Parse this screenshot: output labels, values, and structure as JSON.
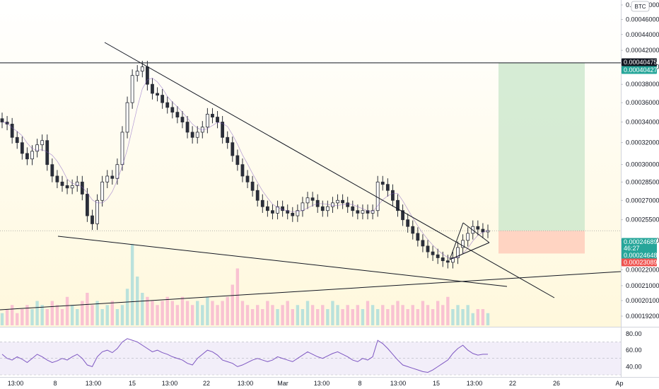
{
  "chart_data": {
    "type": "candlestick",
    "currency": "BTC",
    "colors": {
      "up": "#26a69a",
      "down": "#26a69a",
      "candle": "#2a2e39",
      "volume_up": "#b2dfdb",
      "volume_down": "#f8bbd0",
      "rsi_line": "#7e57c2",
      "rsi_band": "#ede7f6",
      "trendline": "#131722",
      "target_zone": "#c8e6c9",
      "stop_zone": "#ffccbc",
      "last_price_line": "#9e9e9e",
      "tag_dark": "#131722",
      "tag_green": "#26a69a",
      "tag_red": "#ef5350"
    },
    "background_gradient": [
      "#ffffff",
      "#fff8dc"
    ],
    "price_axis": {
      "ticks": [
        "0.00048000",
        "0.00046000",
        "0.00044000",
        "0.00042000",
        "0.00040000",
        "0.00038000",
        "0.00036000",
        "0.00034000",
        "0.00032000",
        "0.00030000",
        "0.00028500",
        "0.00027000",
        "0.00025500",
        "0.00024000",
        "0.00022000",
        "0.00021000",
        "0.00020100",
        "0.00019200"
      ],
      "scale": "log"
    },
    "price_tags": [
      {
        "value": "0.00040475",
        "style": "dark"
      },
      {
        "value": "0.00040427",
        "style": "green"
      },
      {
        "value": "0.00024689",
        "style": "green"
      },
      {
        "value": "46:27",
        "style": "green"
      },
      {
        "value": "0.00024648",
        "style": "green"
      },
      {
        "value": "0.00023089",
        "style": "red"
      }
    ],
    "time_axis": {
      "labels": [
        "13:00",
        "8",
        "13:00",
        "15",
        "13:00",
        "22",
        "13:00",
        "Mar",
        "13:00",
        "8",
        "13:00",
        "15",
        "13:00",
        "22",
        "26",
        "Ap"
      ]
    },
    "rsi": {
      "ticks": [
        "80.00",
        "60.00",
        "40.00"
      ],
      "upper_band": 70,
      "lower_band": 30,
      "range": [
        30,
        85
      ]
    },
    "series": [
      {
        "kind": "price",
        "close": [
          0.00034,
          0.000338,
          0.000325,
          0.00032,
          0.00031,
          0.000305,
          0.000312,
          0.000318,
          0.000322,
          0.0003,
          0.00029,
          0.000285,
          0.000282,
          0.00028,
          0.000282,
          0.000285,
          0.000275,
          0.000258,
          0.000252,
          0.00027,
          0.000285,
          0.00029,
          0.000288,
          0.0003,
          0.00033,
          0.00036,
          0.00039,
          0.000395,
          0.0004,
          0.00038,
          0.00037,
          0.000368,
          0.00036,
          0.000355,
          0.00035,
          0.000345,
          0.00034,
          0.00033,
          0.000325,
          0.00033,
          0.000335,
          0.000348,
          0.000345,
          0.00034,
          0.000325,
          0.00032,
          0.000308,
          0.0003,
          0.00029,
          0.000285,
          0.000278,
          0.00027,
          0.000265,
          0.000262,
          0.00026,
          0.000265,
          0.000262,
          0.00026,
          0.000258,
          0.000262,
          0.000268,
          0.000272,
          0.00027,
          0.000265,
          0.000262,
          0.000265,
          0.000268,
          0.00027,
          0.000268,
          0.000265,
          0.000262,
          0.00026,
          0.000262,
          0.00026,
          0.000262,
          0.000285,
          0.000283,
          0.000278,
          0.00027,
          0.000262,
          0.000255,
          0.00025,
          0.000245,
          0.00024,
          0.000236,
          0.000232,
          0.00023,
          0.000228,
          0.000226,
          0.000225,
          0.000228,
          0.000235,
          0.00024,
          0.000245,
          0.00025,
          0.000248,
          0.000246,
          0.000247
        ]
      },
      {
        "kind": "volume",
        "values": [
          3,
          4,
          5,
          3,
          4,
          5,
          4,
          6,
          5,
          4,
          6,
          5,
          4,
          7,
          5,
          4,
          6,
          8,
          5,
          6,
          4,
          5,
          6,
          4,
          5,
          9,
          20,
          12,
          8,
          7,
          6,
          5,
          6,
          7,
          6,
          5,
          7,
          6,
          5,
          6,
          5,
          7,
          6,
          5,
          6,
          7,
          10,
          14,
          6,
          5,
          4,
          5,
          4,
          6,
          5,
          4,
          5,
          6,
          4,
          5,
          4,
          6,
          5,
          4,
          5,
          4,
          6,
          5,
          4,
          5,
          4,
          5,
          4,
          6,
          5,
          4,
          5,
          4,
          5,
          6,
          5,
          4,
          5,
          4,
          6,
          5,
          4,
          6,
          5,
          7,
          4,
          5,
          4,
          5,
          3,
          4,
          4,
          3
        ]
      },
      {
        "kind": "rsi",
        "values": [
          55,
          50,
          48,
          52,
          49,
          45,
          50,
          55,
          52,
          48,
          45,
          47,
          50,
          48,
          52,
          55,
          50,
          42,
          40,
          52,
          58,
          60,
          57,
          62,
          70,
          74,
          72,
          70,
          66,
          62,
          58,
          60,
          57,
          55,
          52,
          50,
          48,
          44,
          42,
          50,
          55,
          60,
          58,
          54,
          48,
          46,
          44,
          40,
          42,
          45,
          48,
          50,
          48,
          46,
          48,
          52,
          50,
          48,
          46,
          50,
          54,
          58,
          55,
          52,
          50,
          53,
          56,
          58,
          55,
          52,
          48,
          46,
          50,
          48,
          52,
          72,
          68,
          62,
          55,
          48,
          42,
          40,
          38,
          36,
          34,
          33,
          36,
          40,
          44,
          48,
          56,
          62,
          66,
          60,
          56,
          54,
          55,
          55
        ]
      }
    ],
    "title": "",
    "xlabel": "",
    "ylabel": ""
  }
}
